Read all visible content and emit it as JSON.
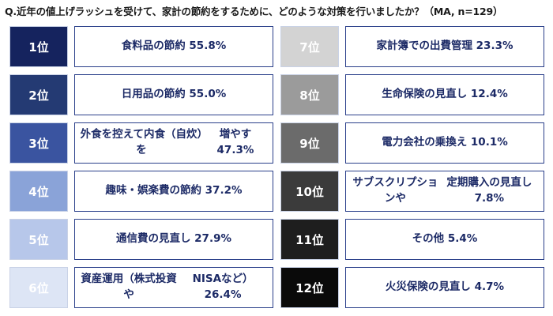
{
  "question": "Q.近年の値上げラッシュを受けて、家計の節約をするために、どのような対策を行いましたか？（MA, n=129）",
  "chart_data": {
    "type": "table",
    "items": [
      {
        "rank": "1位",
        "label_lines": [
          "食料品の節約 55.8%"
        ],
        "value": 55.8,
        "rank_bg": "#15235e",
        "rank_fg": "#ffffff"
      },
      {
        "rank": "2位",
        "label_lines": [
          "日用品の節約 55.0%"
        ],
        "value": 55.0,
        "rank_bg": "#243a73",
        "rank_fg": "#ffffff"
      },
      {
        "rank": "3位",
        "label_lines": [
          "外食を控えて内食（自炊）を",
          "増やす 47.3%"
        ],
        "value": 47.3,
        "rank_bg": "#3a54a0",
        "rank_fg": "#ffffff"
      },
      {
        "rank": "4位",
        "label_lines": [
          "趣味・娯楽費の節約 37.2%"
        ],
        "value": 37.2,
        "rank_bg": "#8aa3d8",
        "rank_fg": "#ffffff"
      },
      {
        "rank": "5位",
        "label_lines": [
          "通信費の見直し 27.9%"
        ],
        "value": 27.9,
        "rank_bg": "#b7c7ea",
        "rank_fg": "#ffffff"
      },
      {
        "rank": "6位",
        "label_lines": [
          "資産運用（株式投資や",
          "NISAなど）26.4%"
        ],
        "value": 26.4,
        "rank_bg": "#dde5f5",
        "rank_fg": "#ffffff"
      },
      {
        "rank": "7位",
        "label_lines": [
          "家計簿での出費管理 23.3%"
        ],
        "value": 23.3,
        "rank_bg": "#d3d3d3",
        "rank_fg": "#ffffff"
      },
      {
        "rank": "8位",
        "label_lines": [
          "生命保険の見直し 12.4%"
        ],
        "value": 12.4,
        "rank_bg": "#9b9b9b",
        "rank_fg": "#ffffff"
      },
      {
        "rank": "9位",
        "label_lines": [
          "電力会社の乗換え 10.1%"
        ],
        "value": 10.1,
        "rank_bg": "#6b6b6b",
        "rank_fg": "#ffffff"
      },
      {
        "rank": "10位",
        "label_lines": [
          "サブスクリプションや",
          "定期購入の見直し 7.8%"
        ],
        "value": 7.8,
        "rank_bg": "#3b3b3b",
        "rank_fg": "#ffffff"
      },
      {
        "rank": "11位",
        "label_lines": [
          "その他 5.4%"
        ],
        "value": 5.4,
        "rank_bg": "#1e1e1e",
        "rank_fg": "#ffffff"
      },
      {
        "rank": "12位",
        "label_lines": [
          "火災保険の見直し 4.7%"
        ],
        "value": 4.7,
        "rank_bg": "#0a0a0a",
        "rank_fg": "#ffffff"
      }
    ]
  }
}
